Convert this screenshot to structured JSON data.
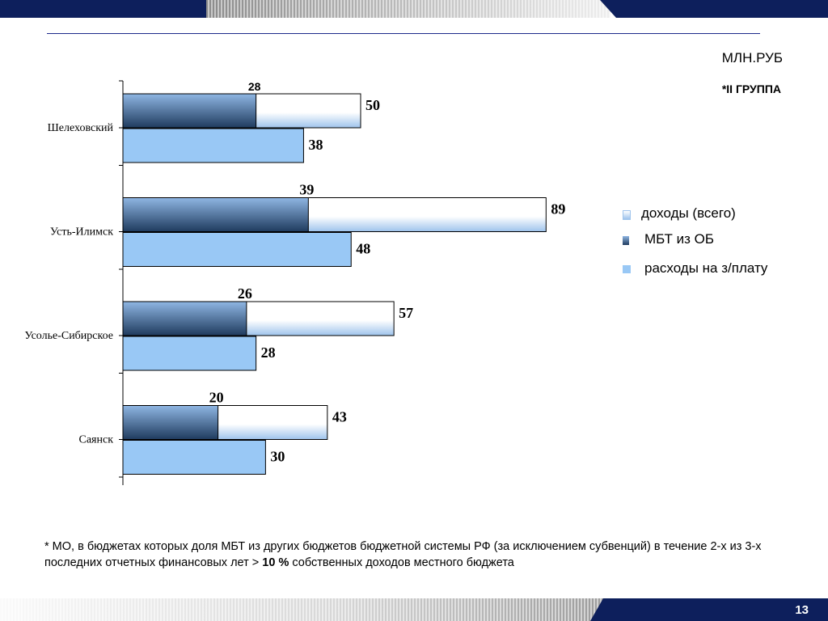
{
  "header": {
    "units": "МЛН.РУБ",
    "group": "*II ГРУППА"
  },
  "chart_data": {
    "type": "bar",
    "orientation": "horizontal",
    "categories": [
      "Шелеховский",
      "Усть-Илимск",
      "Усолье-Сибирское",
      "Саянск"
    ],
    "series": [
      {
        "name": "доходы (всего)",
        "values": [
          50,
          89,
          57,
          43
        ]
      },
      {
        "name": "МБТ из ОБ",
        "values": [
          28,
          39,
          26,
          20
        ]
      },
      {
        "name": "расходы на з/плату",
        "values": [
          38,
          48,
          28,
          30
        ]
      }
    ],
    "xlim": [
      0,
      100
    ],
    "grid": false,
    "legend_position": "right",
    "colors": {
      "income_light": "#ffffff",
      "income_dark": "#9ec3ec",
      "mbt_dark": "#1f3b5e",
      "mbt_light": "#8fb6e3",
      "salary": "#99c8f5",
      "bar_border": "#000000"
    }
  },
  "legend": {
    "items": [
      {
        "label": "доходы (всего)",
        "icon": "gradient-light-swatch"
      },
      {
        "label": "МБТ из ОБ",
        "icon": "gradient-dark-swatch"
      },
      {
        "label": "расходы на з/плату",
        "icon": "light-blue-swatch"
      }
    ]
  },
  "footnote": {
    "text_before": "* МО, в бюджетах которых доля МБТ из других бюджетов бюджетной системы РФ (за исключением субвенций) в течение 2-х из 3-х последних отчетных финансовых лет > ",
    "bold": "10 %",
    "text_after": " собственных доходов местного бюджета"
  },
  "footer": {
    "page_number": "13"
  }
}
